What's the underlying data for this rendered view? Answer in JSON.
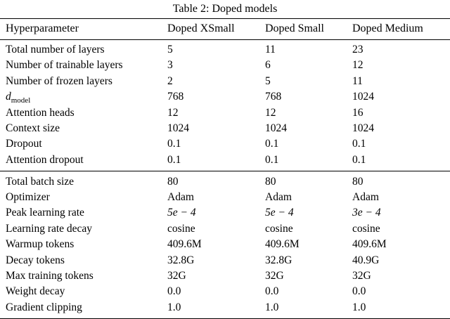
{
  "title": "Table 2: Doped models",
  "columns": [
    "Hyperparameter",
    "Doped XSmall",
    "Doped Small",
    "Doped Medium"
  ],
  "sections": [
    {
      "name": "architecture",
      "rows": [
        {
          "label": "Total number of layers",
          "values": [
            "5",
            "11",
            "23"
          ]
        },
        {
          "label": "Number of trainable layers",
          "values": [
            "3",
            "6",
            "12"
          ]
        },
        {
          "label": "Number of frozen layers",
          "values": [
            "2",
            "5",
            "11"
          ]
        },
        {
          "label": "d",
          "label_sub": "model",
          "values": [
            "768",
            "768",
            "1024"
          ]
        },
        {
          "label": "Attention heads",
          "values": [
            "12",
            "12",
            "16"
          ]
        },
        {
          "label": "Context size",
          "values": [
            "1024",
            "1024",
            "1024"
          ]
        },
        {
          "label": "Dropout",
          "values": [
            "0.1",
            "0.1",
            "0.1"
          ]
        },
        {
          "label": "Attention dropout",
          "values": [
            "0.1",
            "0.1",
            "0.1"
          ]
        }
      ]
    },
    {
      "name": "training",
      "rows": [
        {
          "label": "Total batch size",
          "values": [
            "80",
            "80",
            "80"
          ]
        },
        {
          "label": "Optimizer",
          "values": [
            "Adam",
            "Adam",
            "Adam"
          ]
        },
        {
          "label": "Peak learning rate",
          "values": [
            "5e − 4",
            "5e − 4",
            "3e − 4"
          ],
          "value_style": "math"
        },
        {
          "label": "Learning rate decay",
          "values": [
            "cosine",
            "cosine",
            "cosine"
          ]
        },
        {
          "label": "Warmup tokens",
          "values": [
            "409.6M",
            "409.6M",
            "409.6M"
          ]
        },
        {
          "label": "Decay tokens",
          "values": [
            "32.8G",
            "32.8G",
            "40.9G"
          ]
        },
        {
          "label": "Max training tokens",
          "values": [
            "32G",
            "32G",
            "32G"
          ]
        },
        {
          "label": "Weight decay",
          "values": [
            "0.0",
            "0.0",
            "0.0"
          ]
        },
        {
          "label": "Gradient clipping",
          "values": [
            "1.0",
            "1.0",
            "1.0"
          ]
        }
      ]
    }
  ]
}
